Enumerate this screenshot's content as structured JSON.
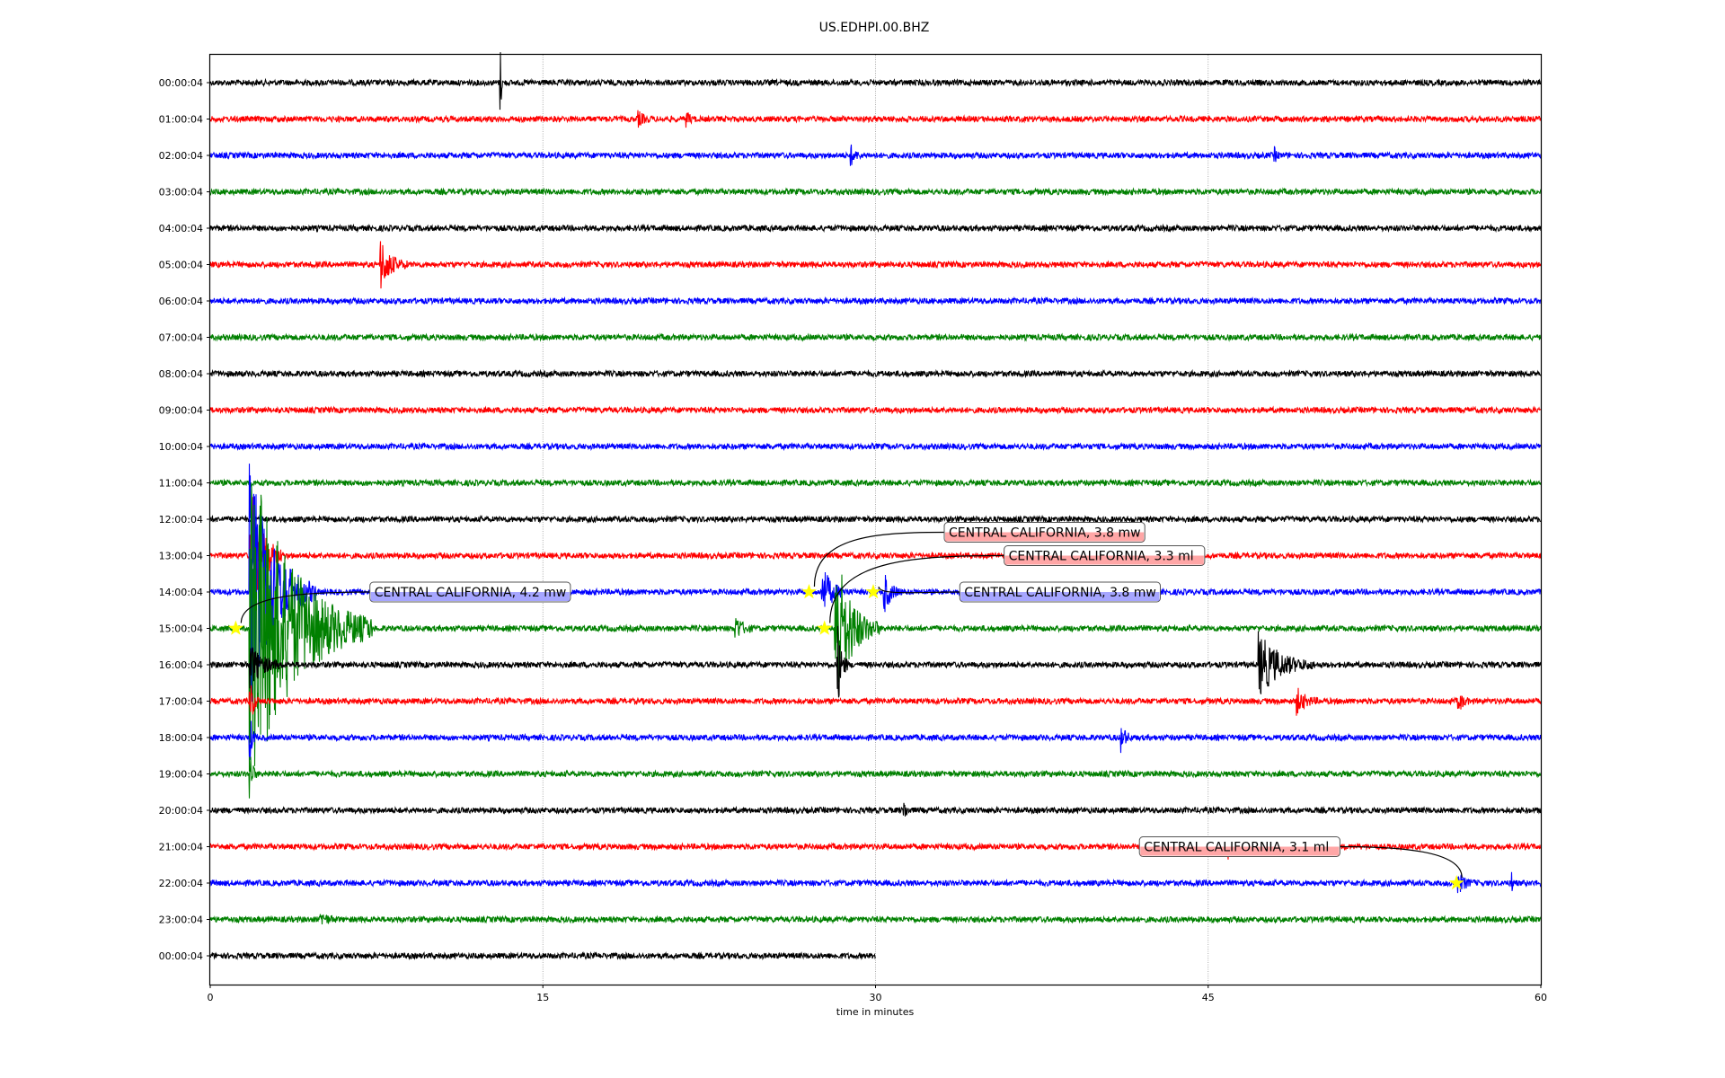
{
  "chart_data": {
    "type": "line",
    "title": "US.EDHPI.00.BHZ",
    "xlabel": "time in minutes",
    "ylabel": "",
    "xlim": [
      0,
      60
    ],
    "xticks": [
      "0",
      "15",
      "30",
      "45",
      "60"
    ],
    "xtick_values": [
      0,
      15,
      30,
      45,
      60
    ],
    "grid": "vertical dotted at x ticks",
    "row_labels": [
      "00:00:04",
      "01:00:04",
      "02:00:04",
      "03:00:04",
      "04:00:04",
      "05:00:04",
      "06:00:04",
      "07:00:04",
      "08:00:04",
      "09:00:04",
      "10:00:04",
      "11:00:04",
      "12:00:04",
      "13:00:04",
      "14:00:04",
      "15:00:04",
      "16:00:04",
      "17:00:04",
      "18:00:04",
      "19:00:04",
      "20:00:04",
      "21:00:04",
      "22:00:04",
      "23:00:04",
      "00:00:04"
    ],
    "row_colors": [
      "#000000",
      "#ff0000",
      "#0000ff",
      "#008000"
    ],
    "last_row_end_minute": 30,
    "bursts": [
      {
        "row": 0,
        "minute": 13.1,
        "amp": 40,
        "dur": 0.1
      },
      {
        "row": 1,
        "minute": 19.3,
        "amp": 8,
        "dur": 0.6
      },
      {
        "row": 1,
        "minute": 21.5,
        "amp": 7,
        "dur": 0.4
      },
      {
        "row": 2,
        "minute": 28.9,
        "amp": 10,
        "dur": 0.5
      },
      {
        "row": 2,
        "minute": 48,
        "amp": 7,
        "dur": 0.3
      },
      {
        "row": 5,
        "minute": 7.7,
        "amp": 28,
        "dur": 1.2
      },
      {
        "row": 13,
        "minute": 1.8,
        "amp": 80,
        "dur": 1.5
      },
      {
        "row": 14,
        "minute": 1.8,
        "amp": 140,
        "dur": 3.0
      },
      {
        "row": 14,
        "minute": 27.6,
        "amp": 28,
        "dur": 1.2
      },
      {
        "row": 14,
        "minute": 30.4,
        "amp": 22,
        "dur": 0.8
      },
      {
        "row": 15,
        "minute": 1.8,
        "amp": 190,
        "dur": 5.5
      },
      {
        "row": 15,
        "minute": 23.7,
        "amp": 14,
        "dur": 0.8
      },
      {
        "row": 15,
        "minute": 28.2,
        "amp": 90,
        "dur": 2.0
      },
      {
        "row": 16,
        "minute": 1.8,
        "amp": 25,
        "dur": 1.5
      },
      {
        "row": 16,
        "minute": 28.3,
        "amp": 45,
        "dur": 0.5
      },
      {
        "row": 16,
        "minute": 47.3,
        "amp": 35,
        "dur": 2.5
      },
      {
        "row": 17,
        "minute": 1.8,
        "amp": 30,
        "dur": 0.4
      },
      {
        "row": 17,
        "minute": 49,
        "amp": 14,
        "dur": 1.0
      },
      {
        "row": 17,
        "minute": 56.3,
        "amp": 12,
        "dur": 0.5
      },
      {
        "row": 18,
        "minute": 1.8,
        "amp": 25,
        "dur": 0.3
      },
      {
        "row": 18,
        "minute": 41.1,
        "amp": 14,
        "dur": 0.5
      },
      {
        "row": 19,
        "minute": 1.8,
        "amp": 30,
        "dur": 0.3
      },
      {
        "row": 20,
        "minute": 31.3,
        "amp": 10,
        "dur": 0.3
      },
      {
        "row": 21,
        "minute": 45.9,
        "amp": 12,
        "dur": 0.2
      },
      {
        "row": 22,
        "minute": 56.3,
        "amp": 10,
        "dur": 0.8
      },
      {
        "row": 22,
        "minute": 58.7,
        "amp": 10,
        "dur": 0.2
      },
      {
        "row": 23,
        "minute": 5,
        "amp": 7,
        "dur": 0.8
      }
    ],
    "events": [
      {
        "label": "CENTRAL CALIFORNIA, 4.2 mw",
        "row": 15,
        "minute": 1.15,
        "label_row": 14,
        "label_minute": 7.2
      },
      {
        "label": "CENTRAL CALIFORNIA, 3.3 ml",
        "row": 15,
        "minute": 27.7,
        "label_row": 13,
        "label_minute": 35.8
      },
      {
        "label": "CENTRAL CALIFORNIA, 3.8 mw",
        "row": 14,
        "minute": 27.0,
        "label_row": 13,
        "label_minute": 33.1
      },
      {
        "label": "CENTRAL CALIFORNIA, 3.8 mw",
        "row": 14,
        "minute": 29.9,
        "label_row": 14,
        "label_minute": 33.8
      },
      {
        "label": "CENTRAL CALIFORNIA, 3.1 ml",
        "row": 22,
        "minute": 56.2,
        "label_row": 21,
        "label_minute": 41.9
      }
    ]
  }
}
